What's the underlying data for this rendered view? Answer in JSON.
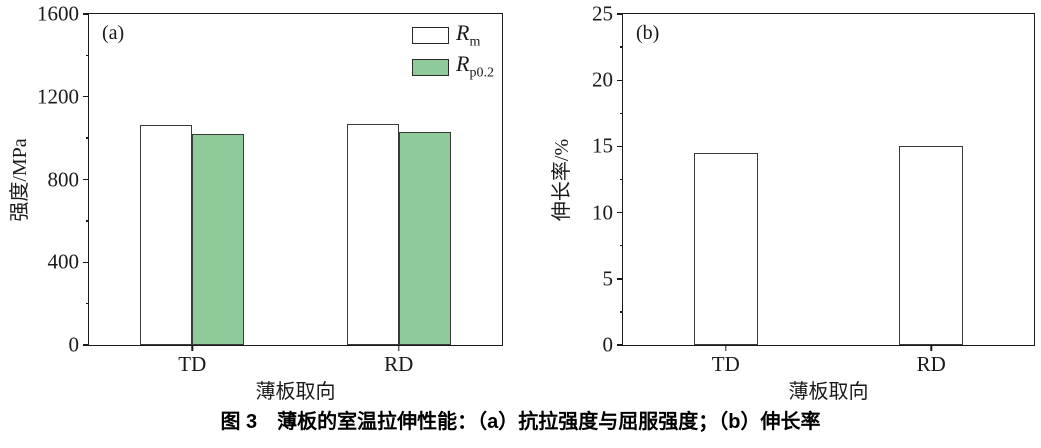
{
  "caption": "图 3　薄板的室温拉伸性能：（a）抗拉强度与屈服强度；（b）伸长率",
  "colors": {
    "bar_white": "#ffffff",
    "bar_green": "#8fca9b",
    "axis": "#1a1a1a"
  },
  "chart_data": [
    {
      "type": "bar",
      "panel": "(a)",
      "categories": [
        "TD",
        "RD"
      ],
      "series": [
        {
          "name": "Rm",
          "label_main": "R",
          "label_sub": "m",
          "color": "#ffffff",
          "values": [
            1065,
            1070
          ]
        },
        {
          "name": "Rp0.2",
          "label_main": "R",
          "label_sub": "p0.2",
          "color": "#8fca9b",
          "values": [
            1020,
            1030
          ]
        }
      ],
      "xlabel": "薄板取向",
      "ylabel": "强度/MPa",
      "ylim": [
        0,
        1600
      ],
      "yticks": [
        0,
        400,
        800,
        1200,
        1600
      ],
      "minor_ticks": true,
      "legend_position": "top-right",
      "grid": false
    },
    {
      "type": "bar",
      "panel": "(b)",
      "categories": [
        "TD",
        "RD"
      ],
      "series": [
        {
          "name": "elongation",
          "color": "#ffffff",
          "values": [
            14.5,
            15.0
          ]
        }
      ],
      "xlabel": "薄板取向",
      "ylabel": "伸长率/%",
      "ylim": [
        0,
        25
      ],
      "yticks": [
        0,
        5,
        10,
        15,
        20,
        25
      ],
      "minor_ticks": true,
      "legend_position": "none",
      "grid": false
    }
  ]
}
